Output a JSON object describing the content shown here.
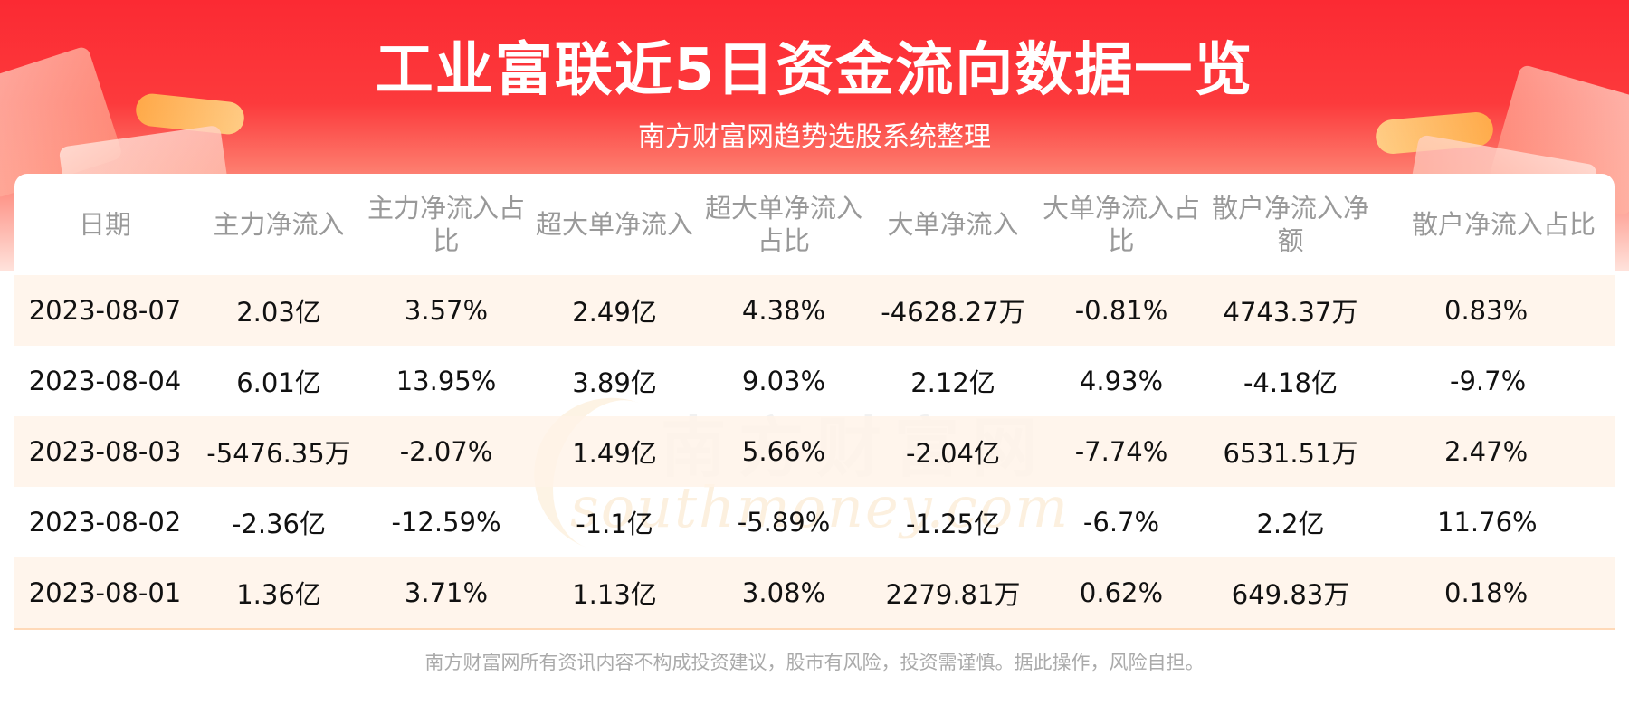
{
  "header": {
    "title": "工业富联近5日资金流向数据一览",
    "subtitle": "南方财富网趋势选股系统整理"
  },
  "table": {
    "columns": [
      "日期",
      "主力净流入",
      "主力净流入占比",
      "超大单净流入",
      "超大单净流入占比",
      "大单净流入",
      "大单净流入占比",
      "散户净流入净额",
      "散户净流入占比"
    ],
    "rows": [
      [
        "2023-08-07",
        "2.03亿",
        "3.57%",
        "2.49亿",
        "4.38%",
        "-4628.27万",
        "-0.81%",
        "4743.37万",
        "0.83%"
      ],
      [
        "2023-08-04",
        "6.01亿",
        "13.95%",
        "3.89亿",
        "9.03%",
        "2.12亿",
        "4.93%",
        "-4.18亿",
        "-9.7%"
      ],
      [
        "2023-08-03",
        "-5476.35万",
        "-2.07%",
        "1.49亿",
        "5.66%",
        "-2.04亿",
        "-7.74%",
        "6531.51万",
        "2.47%"
      ],
      [
        "2023-08-02",
        "-2.36亿",
        "-12.59%",
        "-1.1亿",
        "-5.89%",
        "-1.25亿",
        "-6.7%",
        "2.2亿",
        "11.76%"
      ],
      [
        "2023-08-01",
        "1.36亿",
        "3.71%",
        "1.13亿",
        "3.08%",
        "2279.81万",
        "0.62%",
        "649.83万",
        "0.18%"
      ]
    ]
  },
  "watermark": {
    "cn": "南方财富网",
    "en": "southmoney.com"
  },
  "footer": {
    "disclaimer": "南方财富网所有资讯内容不构成投资建议，股市有风险，投资需谨慎。据此操作，风险自担。"
  },
  "colors": {
    "banner_red": "#fb2a33",
    "row_tint": "#fff3e8",
    "header_text": "#999999"
  }
}
